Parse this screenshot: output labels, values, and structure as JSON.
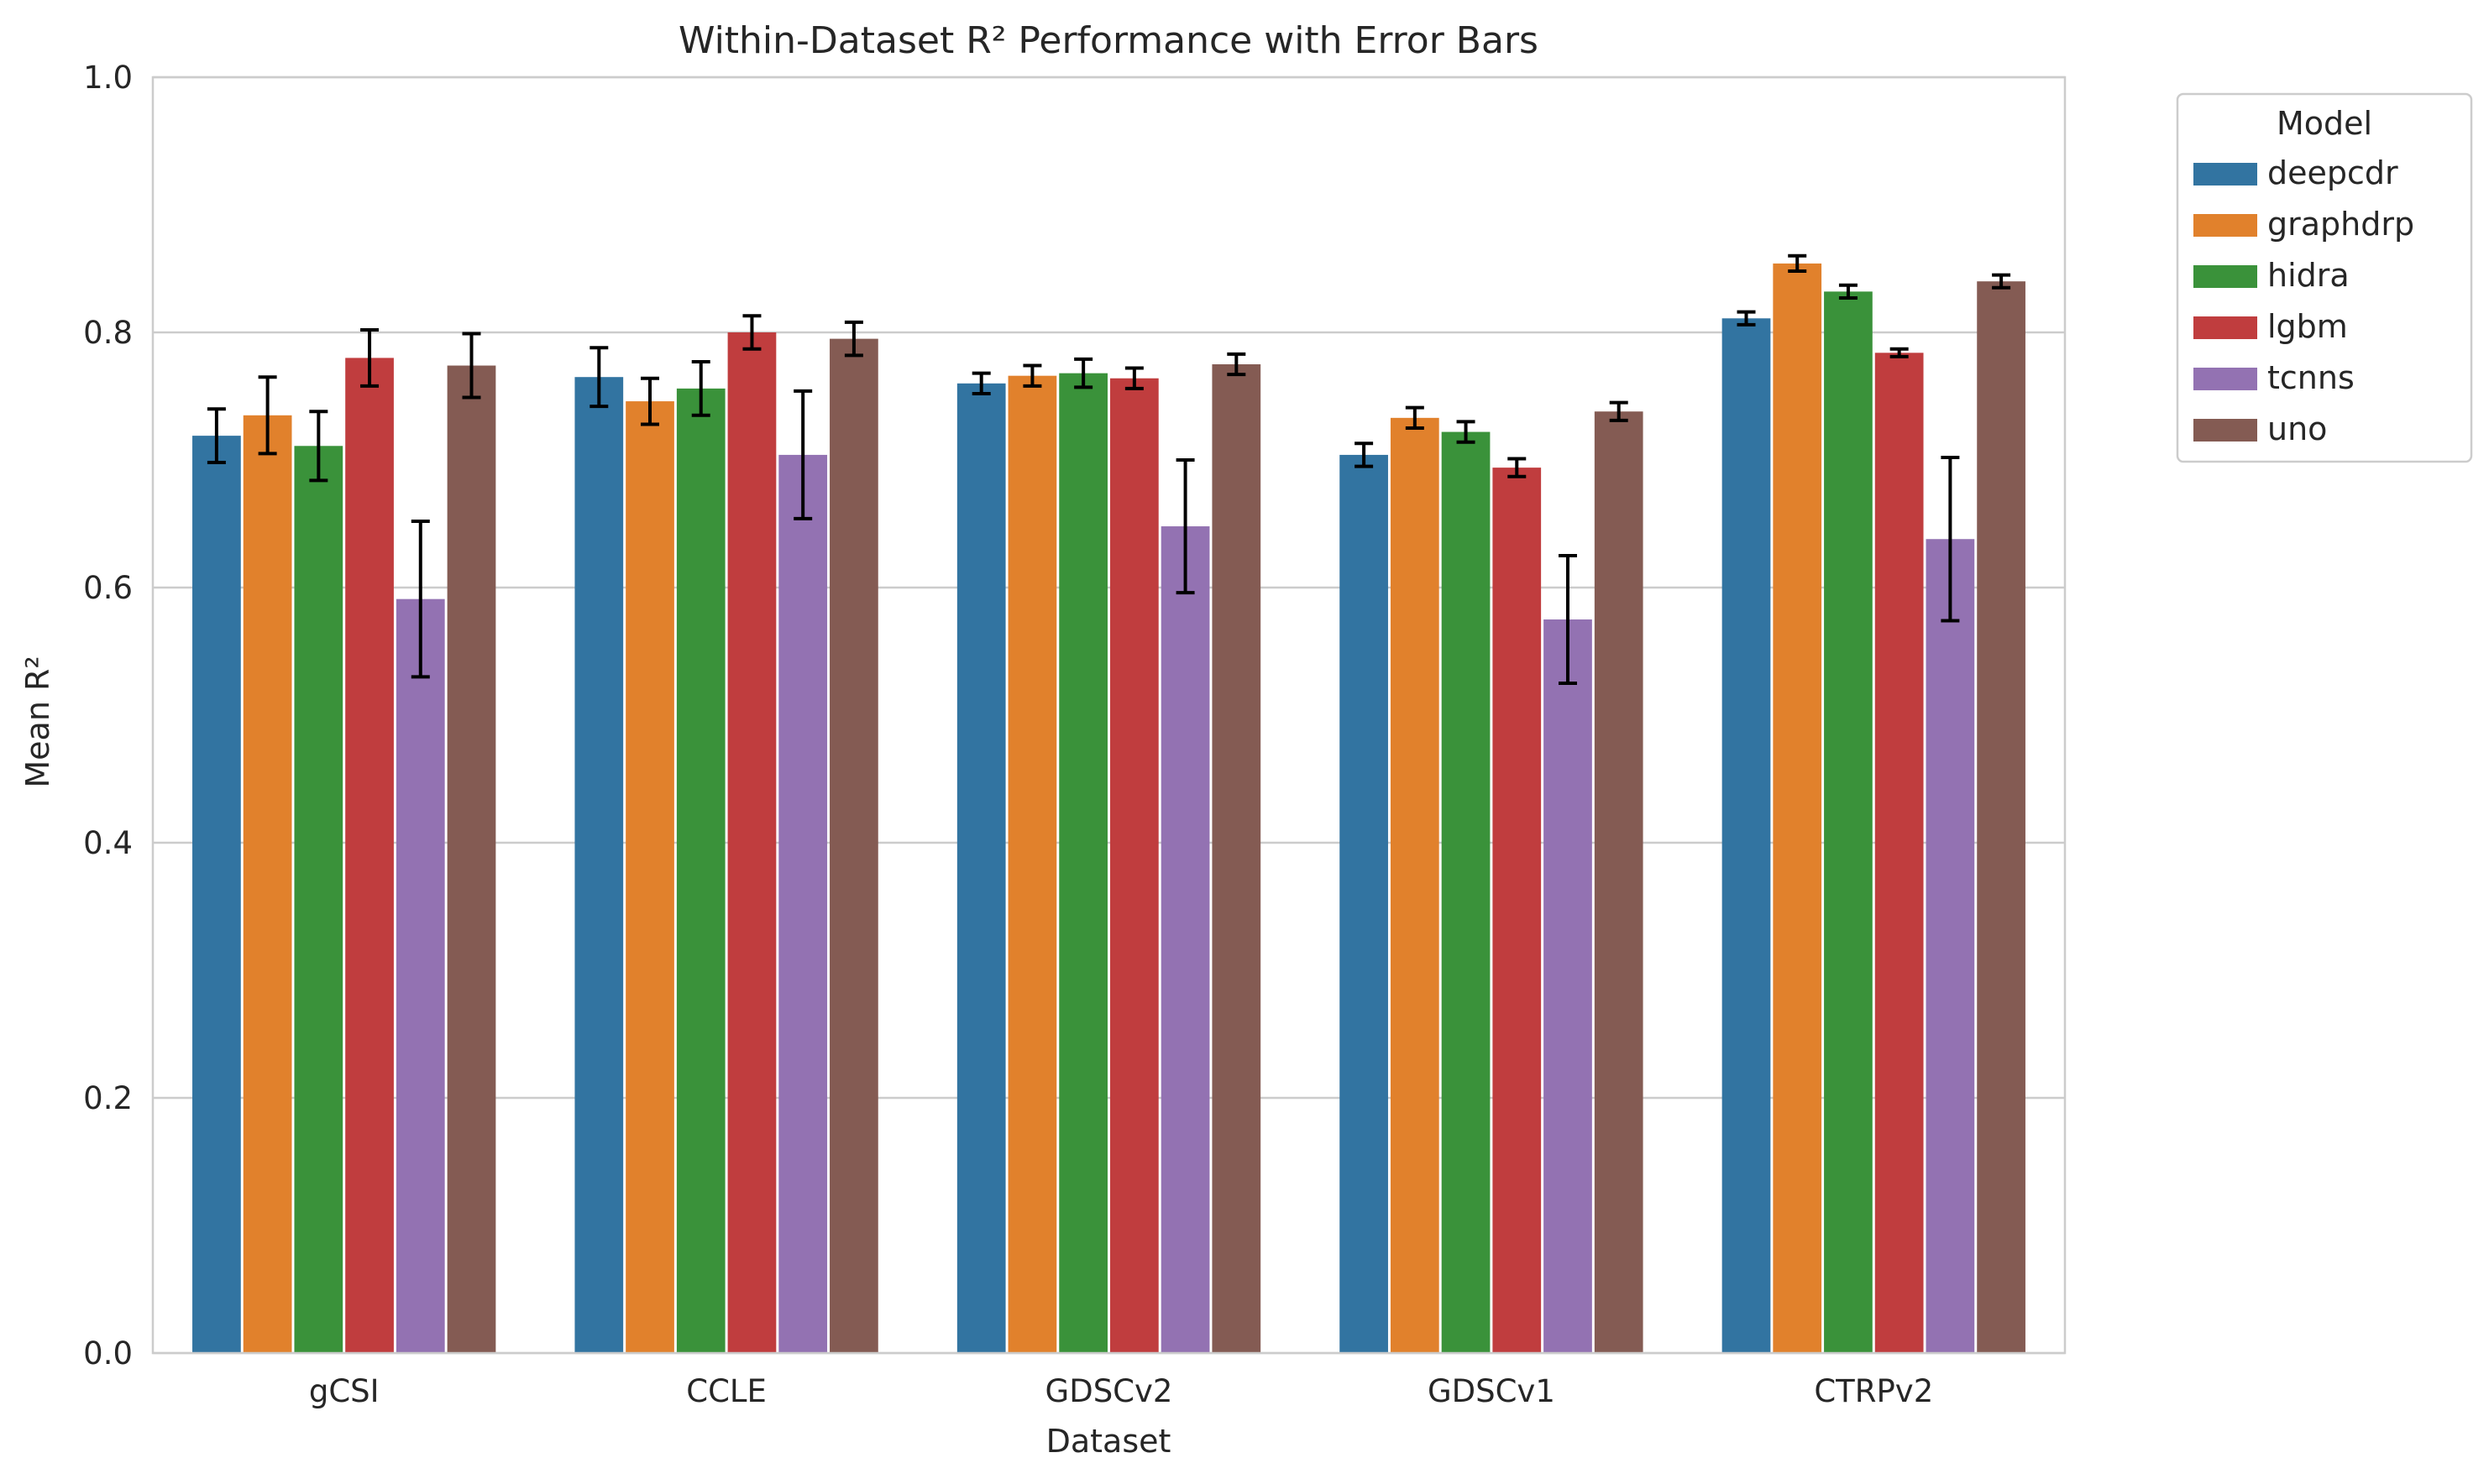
{
  "chart_data": {
    "type": "bar",
    "title": "Within-Dataset R² Performance with Error Bars",
    "xlabel": "Dataset",
    "ylabel": "Mean R²",
    "ylim": [
      0,
      1.0
    ],
    "yticks": [
      0.0,
      0.2,
      0.4,
      0.6,
      0.8,
      1.0
    ],
    "ytick_labels": [
      "0.0",
      "0.2",
      "0.4",
      "0.6",
      "0.8",
      "1.0"
    ],
    "grid": "horizontal",
    "legend": {
      "title": "Model",
      "placement": "outside-top-right"
    },
    "categories": [
      "gCSI",
      "CCLE",
      "GDSCv2",
      "GDSCv1",
      "CTRPv2"
    ],
    "series": [
      {
        "name": "deepcdr",
        "color": "#3274a1",
        "values": [
          0.719,
          0.765,
          0.76,
          0.704,
          0.811
        ],
        "errors": [
          0.021,
          0.023,
          0.008,
          0.009,
          0.005
        ]
      },
      {
        "name": "graphdrp",
        "color": "#e1812c",
        "values": [
          0.735,
          0.746,
          0.766,
          0.733,
          0.854
        ],
        "errors": [
          0.03,
          0.018,
          0.008,
          0.008,
          0.006
        ]
      },
      {
        "name": "hidra",
        "color": "#3a923a",
        "values": [
          0.711,
          0.756,
          0.768,
          0.722,
          0.832
        ],
        "errors": [
          0.027,
          0.021,
          0.011,
          0.008,
          0.005
        ]
      },
      {
        "name": "lgbm",
        "color": "#c03d3e",
        "values": [
          0.78,
          0.8,
          0.764,
          0.694,
          0.784
        ],
        "errors": [
          0.022,
          0.013,
          0.008,
          0.007,
          0.003
        ]
      },
      {
        "name": "tcnns",
        "color": "#9372b2",
        "values": [
          0.591,
          0.704,
          0.648,
          0.575,
          0.638
        ],
        "errors": [
          0.061,
          0.05,
          0.052,
          0.05,
          0.064
        ]
      },
      {
        "name": "uno",
        "color": "#845b53",
        "values": [
          0.774,
          0.795,
          0.775,
          0.738,
          0.84
        ],
        "errors": [
          0.025,
          0.013,
          0.008,
          0.007,
          0.005
        ]
      }
    ]
  }
}
